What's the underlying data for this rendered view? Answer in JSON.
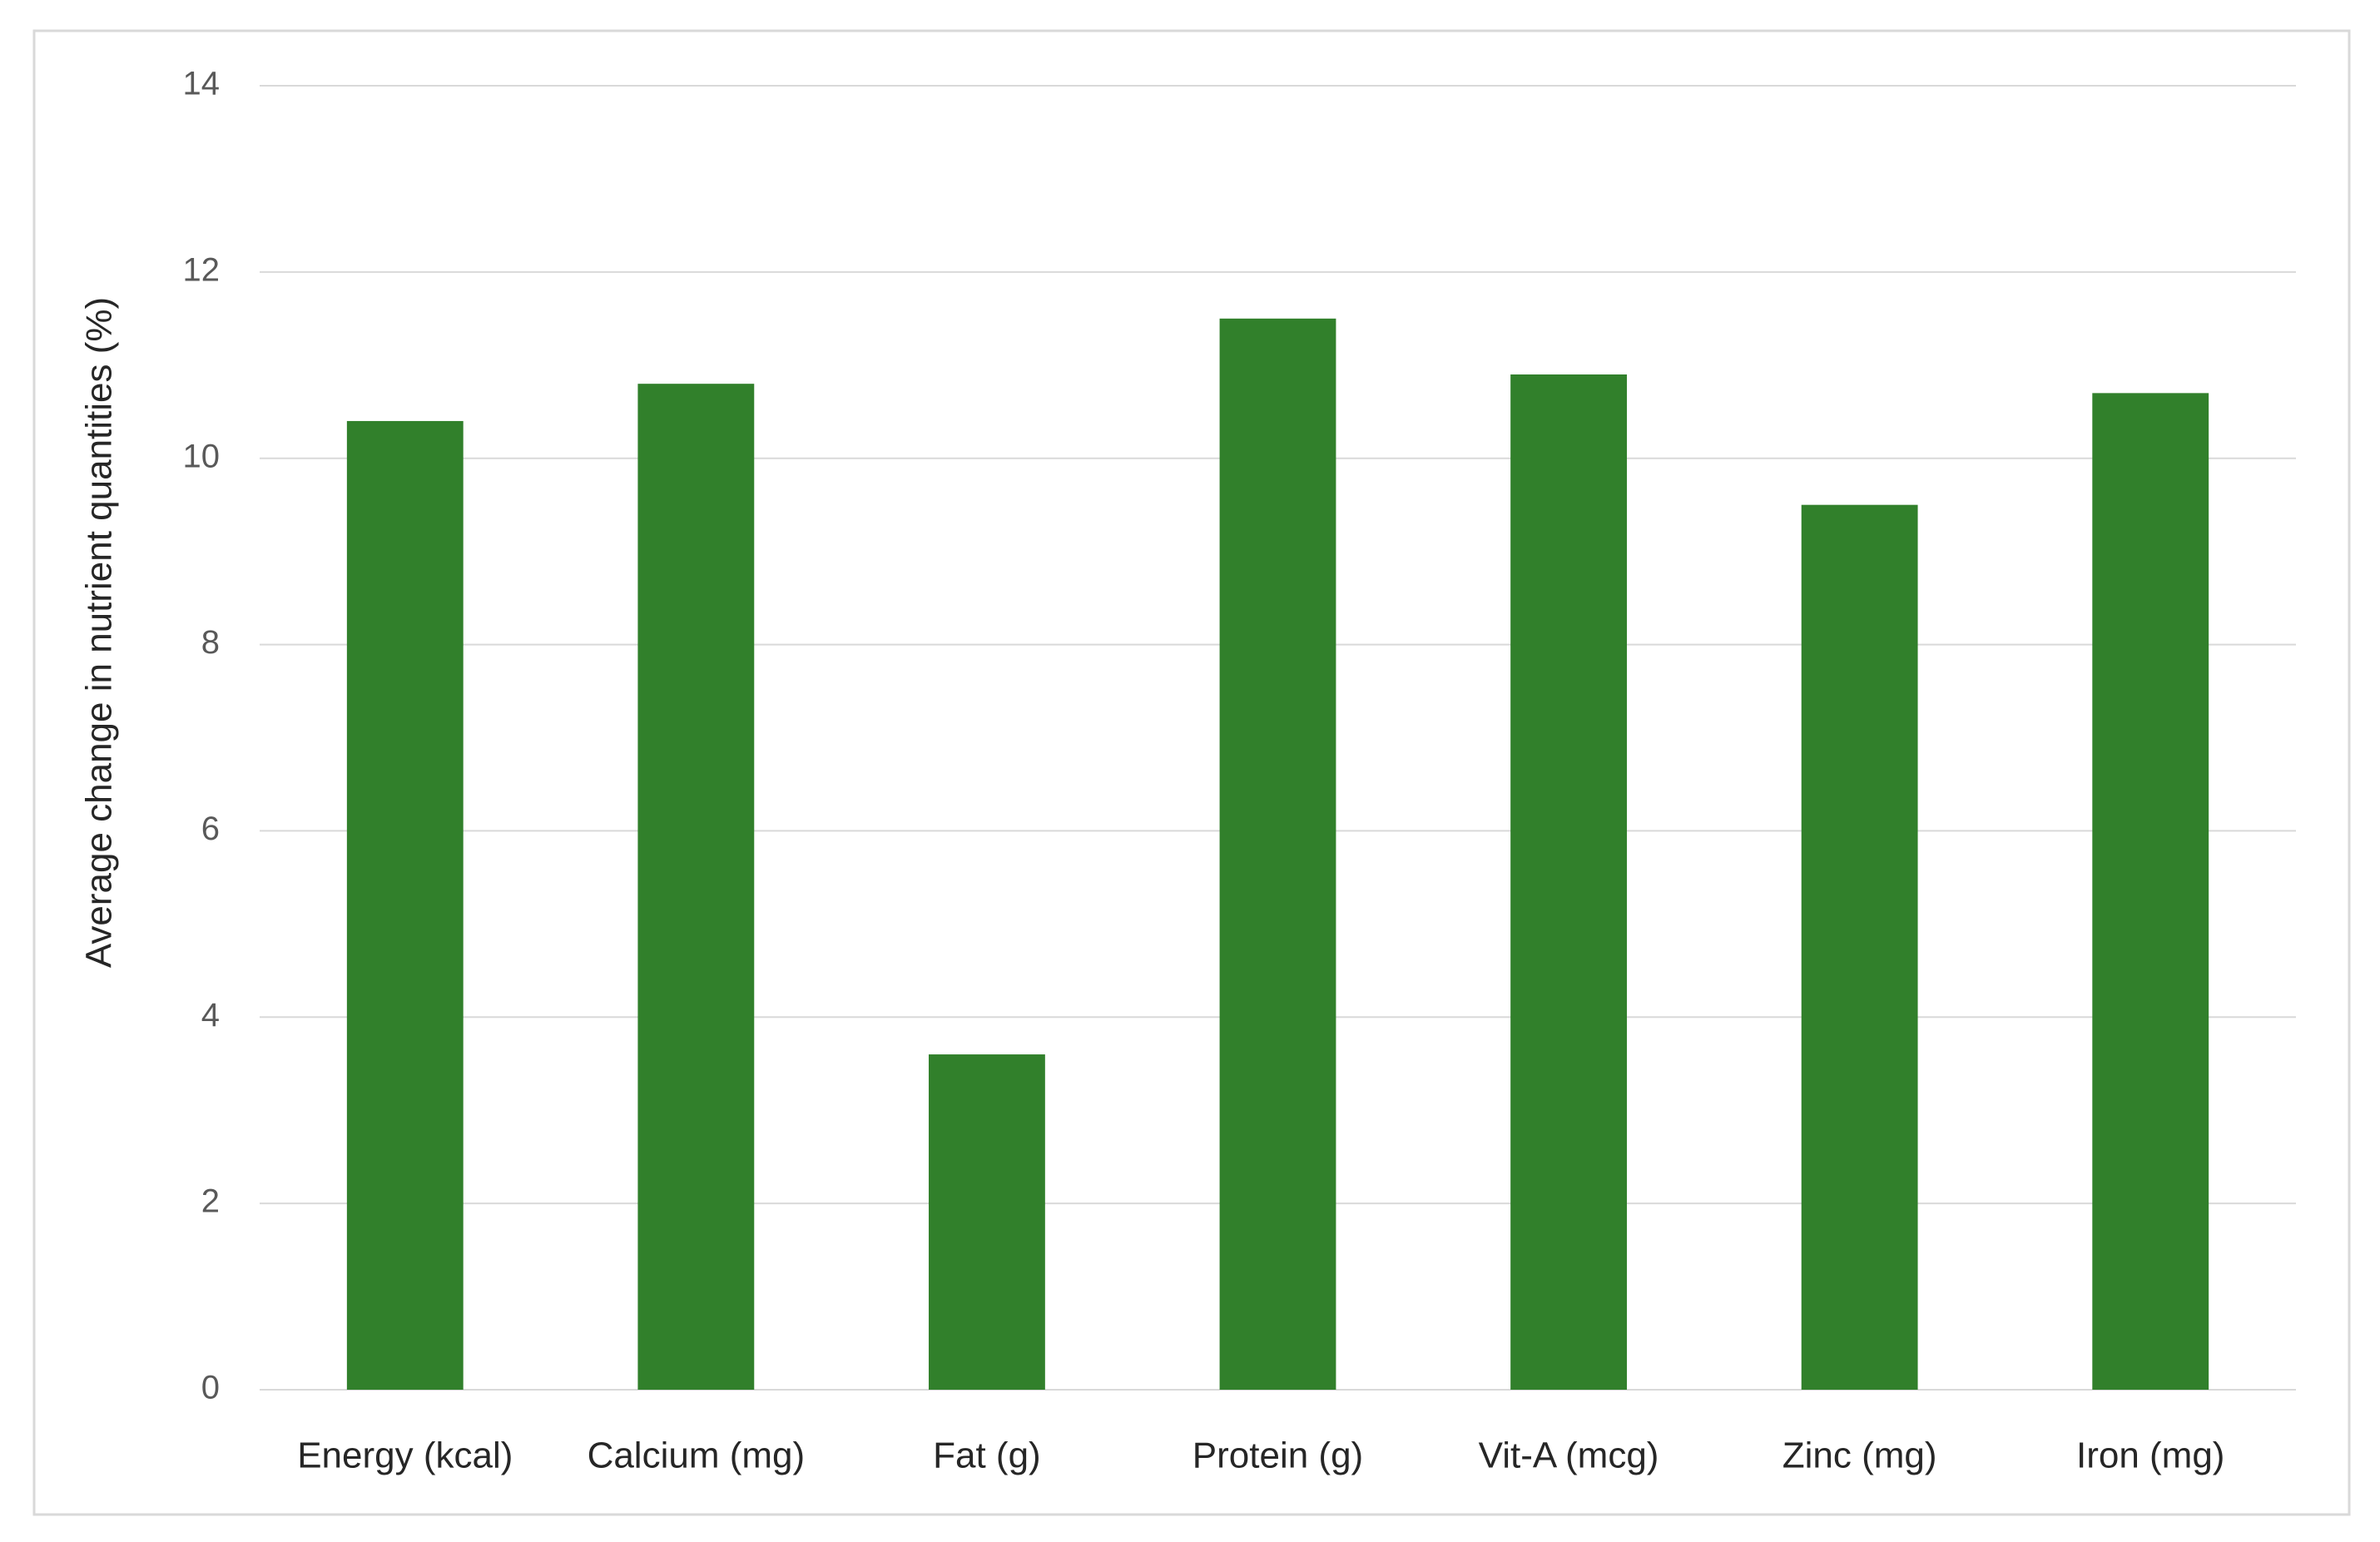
{
  "chart_data": {
    "type": "bar",
    "y_label": "Average change in nutrient quantities (%)",
    "categories": [
      "Energy (kcal)",
      "Calcium (mg)",
      "Fat (g)",
      "Protein (g)",
      "Vit-A (mcg)",
      "Zinc (mg)",
      "Iron (mg)"
    ],
    "values": [
      10.4,
      10.8,
      3.6,
      11.5,
      10.9,
      9.5,
      10.7
    ],
    "color": "#31802b",
    "ylim": [
      0,
      14
    ],
    "yticks": [
      0,
      2,
      4,
      6,
      8,
      10,
      12,
      14
    ],
    "grid": true
  }
}
